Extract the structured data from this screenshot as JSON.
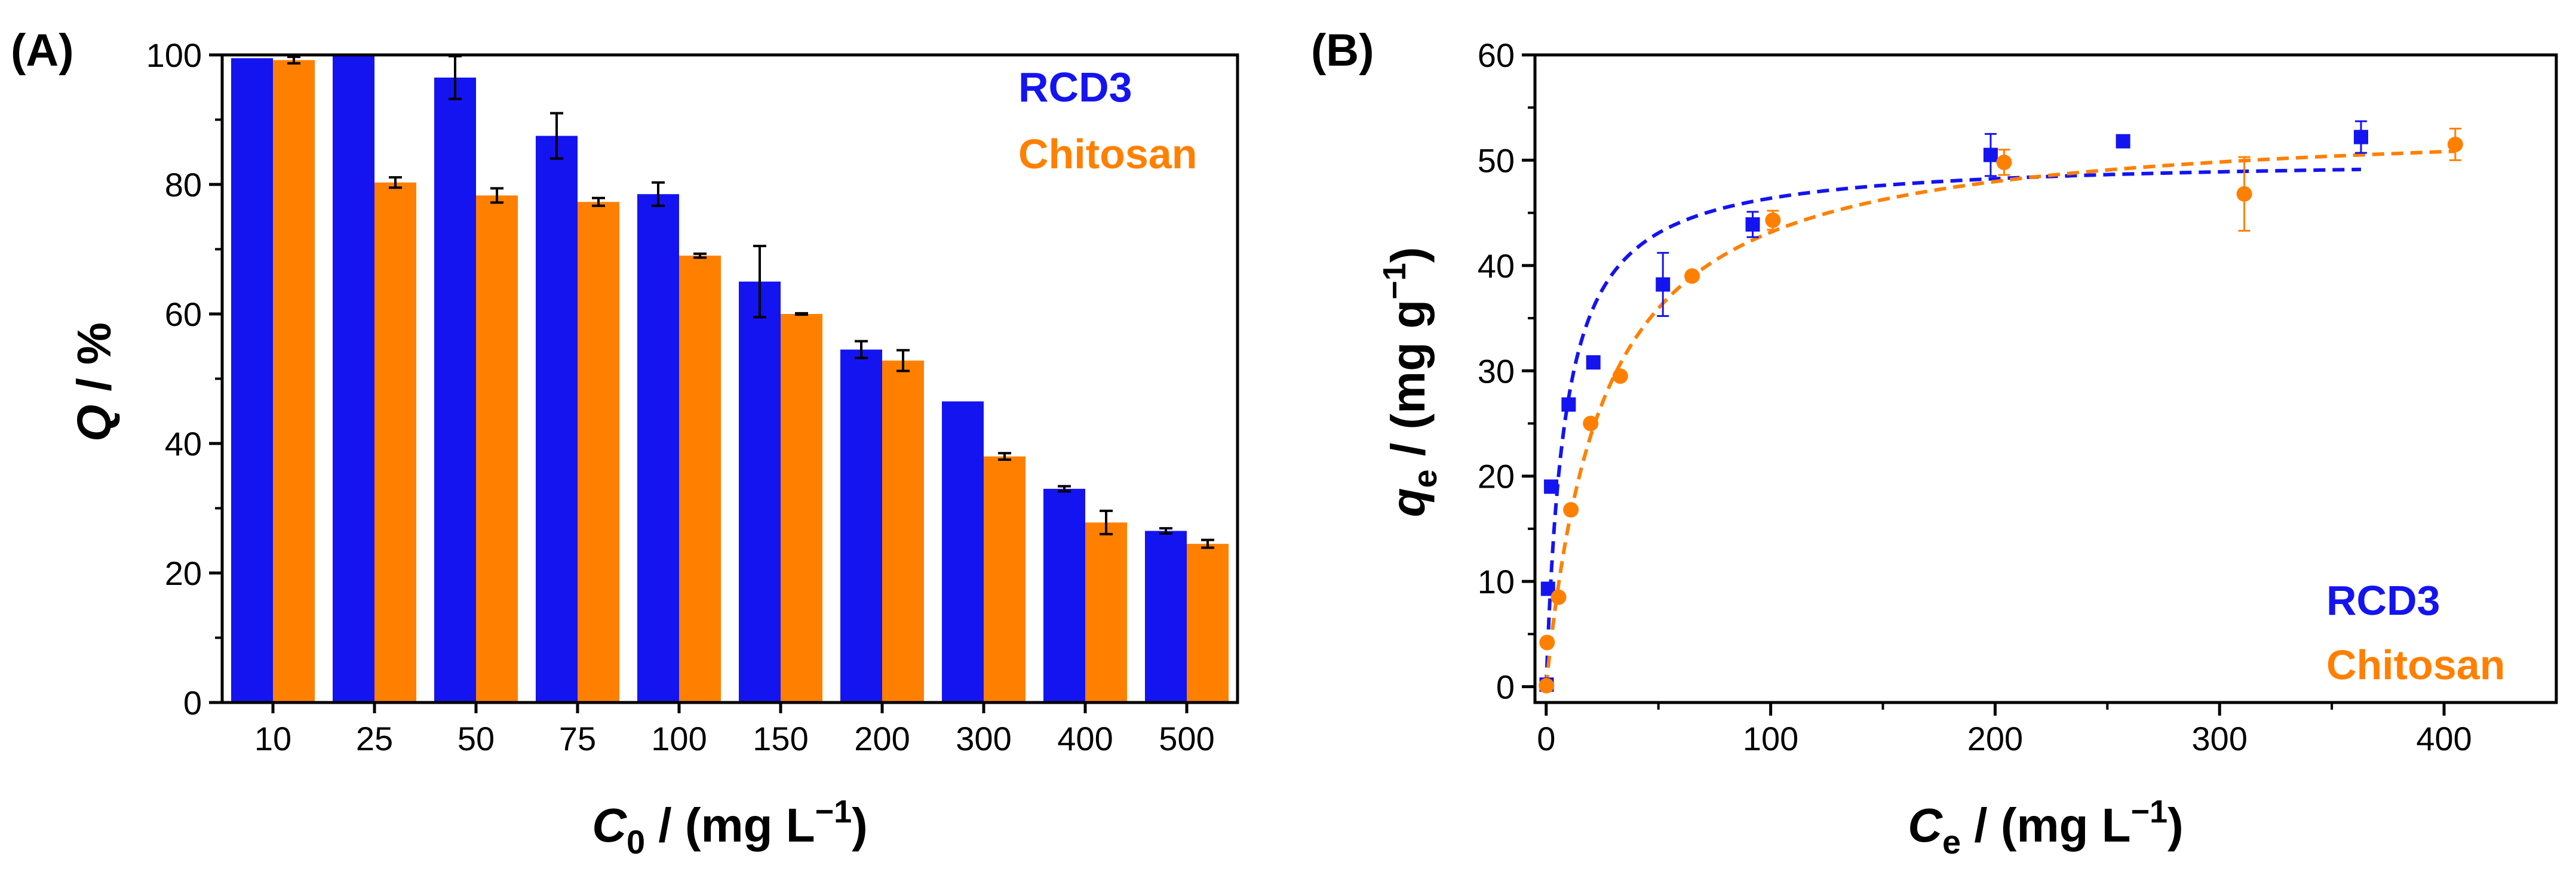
{
  "colors": {
    "rcd3": "#1414f0",
    "chitosan": "#ff8000",
    "axis": "#000000"
  },
  "chart_data": [
    {
      "panel_label": "(A)",
      "type": "bar",
      "title": "",
      "xlabel_parts": {
        "pre": "C",
        "sub": "0",
        "mid": " / (mg L",
        "sup": "−1",
        "post": ")"
      },
      "ylabel_parts": {
        "italic": "Q",
        "rest": " / %"
      },
      "ylim": [
        0,
        100
      ],
      "y_ticks": [
        0,
        20,
        40,
        60,
        80,
        100
      ],
      "categories": [
        "10",
        "25",
        "50",
        "75",
        "100",
        "150",
        "200",
        "300",
        "400",
        "500"
      ],
      "legend_position": "top-right",
      "series": [
        {
          "name": "RCD3",
          "values": [
            99.5,
            100,
            96.5,
            87.5,
            78.5,
            65,
            54.5,
            46.5,
            33,
            26.5
          ],
          "errors": [
            0,
            0,
            3.3,
            3.5,
            1.8,
            5.5,
            1.3,
            0,
            0.4,
            0.4
          ]
        },
        {
          "name": "Chitosan",
          "values": [
            99.2,
            80.3,
            78.3,
            77.3,
            69,
            60,
            52.8,
            38,
            27.8,
            24.5
          ],
          "errors": [
            0.5,
            0.8,
            1.1,
            0.6,
            0.3,
            0.1,
            1.6,
            0.5,
            1.8,
            0.6
          ]
        }
      ]
    },
    {
      "panel_label": "(B)",
      "type": "scatter",
      "title": "",
      "xlabel_parts": {
        "pre": "C",
        "sub": "e",
        "mid": " / (mg L",
        "sup": "−1",
        "post": ")"
      },
      "ylabel_parts": {
        "pre": "q",
        "sub": "e",
        "mid": " / (mg g",
        "sup": "−1",
        "post": ")"
      },
      "xlim": [
        -5,
        450
      ],
      "ylim": [
        -1.5,
        60
      ],
      "x_ticks": [
        0,
        100,
        200,
        300,
        400
      ],
      "y_ticks": [
        0,
        10,
        20,
        30,
        40,
        50,
        60
      ],
      "legend_position": "bottom-right",
      "series": [
        {
          "name": "RCD3",
          "marker": "square",
          "fit": "dashed",
          "x": [
            0.2,
            0.8,
            2.2,
            10,
            21,
            52,
            92,
            198,
            257,
            363
          ],
          "y": [
            0.2,
            9.3,
            19,
            26.8,
            30.8,
            38.2,
            43.9,
            50.5,
            51.8,
            52.2
          ],
          "errors": [
            0,
            0,
            0,
            0,
            0,
            3,
            1.2,
            2,
            0.5,
            1.5
          ]
        },
        {
          "name": "Chitosan",
          "marker": "circle",
          "fit": "dashed",
          "x": [
            0.1,
            0.4,
            5.5,
            11,
            19.8,
            33,
            65,
            101,
            204,
            311,
            405
          ],
          "y": [
            0.1,
            4.2,
            8.5,
            16.8,
            25,
            29.5,
            39,
            44.3,
            49.8,
            46.8,
            51.5
          ],
          "errors": [
            0,
            0,
            0,
            0,
            0,
            0,
            0,
            0.9,
            1.2,
            3.5,
            1.5
          ]
        }
      ]
    }
  ]
}
